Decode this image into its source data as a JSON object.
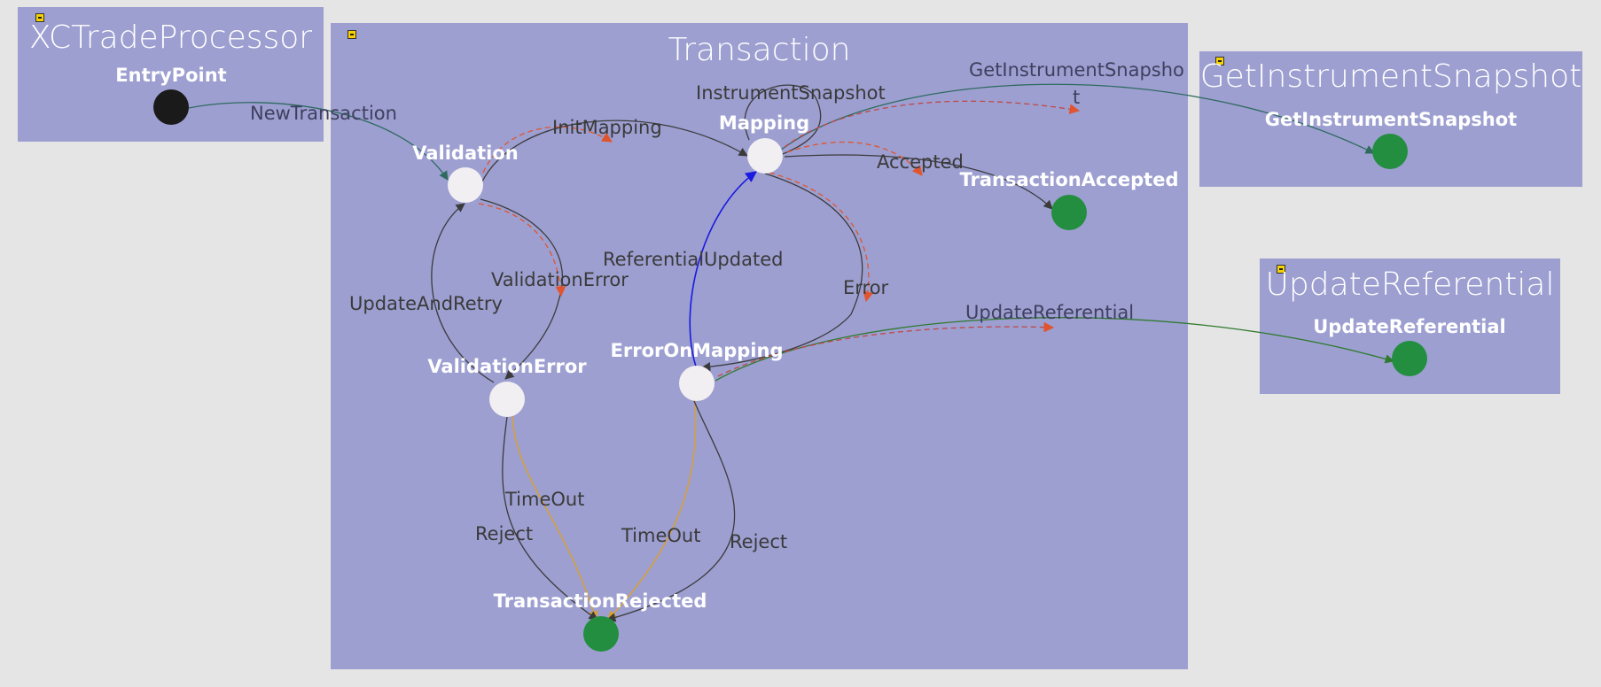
{
  "containers": {
    "xctrade": {
      "title": "XCTradeProcessor"
    },
    "transaction": {
      "title": "Transaction"
    },
    "getinstrument": {
      "title": "GetInstrumentSnapshot"
    },
    "updateref": {
      "title": "UpdateReferential"
    }
  },
  "states": {
    "entrypoint": "EntryPoint",
    "validation": "Validation",
    "mapping": "Mapping",
    "validation_error": "ValidationError",
    "error_on_mapping": "ErrorOnMapping",
    "transaction_accepted": "TransactionAccepted",
    "transaction_rejected": "TransactionRejected",
    "get_instrument_snapshot": "GetInstrumentSnapshot",
    "update_referential": "UpdateReferential"
  },
  "transitions": {
    "new_transaction": "NewTransaction",
    "init_mapping": "InitMapping",
    "instrument_snapshot": "InstrumentSnapshot",
    "get_instrument_snapshot_1": "GetInstrumentSnapsho",
    "get_instrument_snapshot_2": "t",
    "accepted": "Accepted",
    "validation_error": "ValidationError",
    "referential_updated": "ReferentialUpdated",
    "update_and_retry": "UpdateAndRetry",
    "error": "Error",
    "update_referential": "UpdateReferential",
    "timeout_1": "TimeOut",
    "reject_1": "Reject",
    "timeout_2": "TimeOut",
    "reject_2": "Reject"
  },
  "colors": {
    "background": "#e5e5e5",
    "container": "#9d9fd1",
    "state_node": "#f2eff2",
    "final_node": "#238e3f",
    "entry_node": "#1a1a1a",
    "edge_default": "#3b3b3b",
    "edge_teal": "#2e6a5e",
    "edge_green": "#2f7a2f",
    "edge_blue": "#1a1ae0",
    "edge_orange": "#d79a3a",
    "edge_red_dashed": "#e0552e"
  }
}
